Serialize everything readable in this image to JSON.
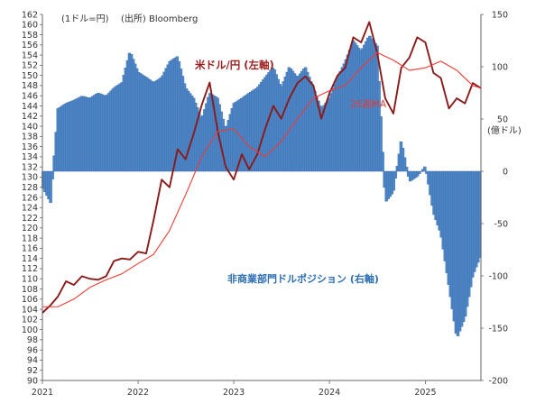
{
  "notes": {
    "left_unit": "(1ドル=円)",
    "source": "(出所) Bloomberg",
    "right_unit": "(億ドル)"
  },
  "labels": {
    "usdjpy": "米ドル/円 (左軸)",
    "ma": "26週MA",
    "positions": "非商業部門ドルポジション (右軸)"
  },
  "colors": {
    "usdjpy": "#8b1a1a",
    "ma": "#ef3b35",
    "bars": "#4f86c6",
    "bar_edge": "#2c5f9e",
    "axis": "#666666"
  },
  "chart_data": {
    "type": "bar+line",
    "x_range": [
      "2021-01-01",
      "2025-08-01"
    ],
    "x_ticks": [
      "2021",
      "2022",
      "2023",
      "2024",
      "2025"
    ],
    "y_left": {
      "min": 90,
      "max": 162,
      "step": 2
    },
    "y_right": {
      "min": -200,
      "max": 150,
      "step": 50,
      "ticks": [
        "150",
        "100",
        "50",
        "0",
        "-50",
        "-100",
        "-150",
        "-200"
      ]
    },
    "series": [
      {
        "name": "米ドル/円",
        "type": "line",
        "axis": "left",
        "points": [
          [
            "2021-01-01",
            103.3
          ],
          [
            "2021-02-01",
            104.8
          ],
          [
            "2021-03-01",
            106.5
          ],
          [
            "2021-04-01",
            109.5
          ],
          [
            "2021-05-01",
            108.8
          ],
          [
            "2021-06-01",
            110.5
          ],
          [
            "2021-07-01",
            110.0
          ],
          [
            "2021-08-01",
            109.8
          ],
          [
            "2021-09-01",
            110.5
          ],
          [
            "2021-10-01",
            113.5
          ],
          [
            "2021-11-01",
            114.0
          ],
          [
            "2021-12-01",
            113.8
          ],
          [
            "2022-01-01",
            115.3
          ],
          [
            "2022-02-01",
            115.0
          ],
          [
            "2022-03-01",
            121.5
          ],
          [
            "2022-04-01",
            129.5
          ],
          [
            "2022-05-01",
            128.0
          ],
          [
            "2022-06-01",
            135.5
          ],
          [
            "2022-07-01",
            133.5
          ],
          [
            "2022-08-01",
            138.5
          ],
          [
            "2022-09-01",
            144.2
          ],
          [
            "2022-10-01",
            148.6
          ],
          [
            "2022-11-01",
            139.0
          ],
          [
            "2022-12-01",
            132.0
          ],
          [
            "2023-01-01",
            129.5
          ],
          [
            "2023-02-01",
            134.5
          ],
          [
            "2023-03-01",
            131.5
          ],
          [
            "2023-04-01",
            134.5
          ],
          [
            "2023-05-01",
            139.5
          ],
          [
            "2023-06-01",
            144.0
          ],
          [
            "2023-07-01",
            141.5
          ],
          [
            "2023-08-01",
            145.5
          ],
          [
            "2023-09-01",
            148.5
          ],
          [
            "2023-10-01",
            149.8
          ],
          [
            "2023-11-01",
            148.0
          ],
          [
            "2023-12-01",
            141.5
          ],
          [
            "2024-01-01",
            146.5
          ],
          [
            "2024-02-01",
            150.0
          ],
          [
            "2024-03-01",
            151.5
          ],
          [
            "2024-04-01",
            157.5
          ],
          [
            "2024-05-01",
            156.5
          ],
          [
            "2024-06-01",
            160.5
          ],
          [
            "2024-07-01",
            154.5
          ],
          [
            "2024-08-01",
            145.5
          ],
          [
            "2024-09-01",
            142.5
          ],
          [
            "2024-10-01",
            151.5
          ],
          [
            "2024-11-01",
            153.5
          ],
          [
            "2024-12-01",
            157.5
          ],
          [
            "2025-01-01",
            156.5
          ],
          [
            "2025-02-01",
            150.5
          ],
          [
            "2025-03-01",
            149.5
          ],
          [
            "2025-04-01",
            143.5
          ],
          [
            "2025-05-01",
            145.5
          ],
          [
            "2025-06-01",
            144.5
          ],
          [
            "2025-07-01",
            148.5
          ],
          [
            "2025-08-01",
            147.5
          ]
        ]
      },
      {
        "name": "26週MA",
        "type": "line",
        "axis": "left",
        "points": [
          [
            "2021-01-01",
            104.5
          ],
          [
            "2021-03-01",
            104.5
          ],
          [
            "2021-05-01",
            106.0
          ],
          [
            "2021-07-01",
            108.3
          ],
          [
            "2021-09-01",
            109.8
          ],
          [
            "2021-11-01",
            111.0
          ],
          [
            "2022-01-01",
            113.0
          ],
          [
            "2022-03-01",
            114.8
          ],
          [
            "2022-05-01",
            119.5
          ],
          [
            "2022-07-01",
            126.5
          ],
          [
            "2022-09-01",
            134.0
          ],
          [
            "2022-11-01",
            139.0
          ],
          [
            "2023-01-01",
            139.5
          ],
          [
            "2023-03-01",
            136.0
          ],
          [
            "2023-05-01",
            134.0
          ],
          [
            "2023-07-01",
            137.0
          ],
          [
            "2023-09-01",
            141.5
          ],
          [
            "2023-11-01",
            145.5
          ],
          [
            "2024-01-01",
            147.0
          ],
          [
            "2024-03-01",
            148.0
          ],
          [
            "2024-05-01",
            151.5
          ],
          [
            "2024-07-01",
            154.5
          ],
          [
            "2024-09-01",
            153.0
          ],
          [
            "2024-11-01",
            151.0
          ],
          [
            "2025-01-01",
            151.5
          ],
          [
            "2025-03-01",
            152.8
          ],
          [
            "2025-05-01",
            151.0
          ],
          [
            "2025-07-01",
            148.0
          ],
          [
            "2025-08-01",
            147.5
          ]
        ]
      },
      {
        "name": "非商業部門ドルポジション",
        "type": "bar",
        "axis": "right",
        "points": [
          [
            "2021-01-01",
            -15
          ],
          [
            "2021-02-01",
            -30
          ],
          [
            "2021-03-01",
            60
          ],
          [
            "2021-04-01",
            65
          ],
          [
            "2021-05-01",
            68
          ],
          [
            "2021-06-01",
            72
          ],
          [
            "2021-07-01",
            70
          ],
          [
            "2021-08-01",
            75
          ],
          [
            "2021-09-01",
            72
          ],
          [
            "2021-10-01",
            80
          ],
          [
            "2021-11-01",
            85
          ],
          [
            "2021-12-01",
            115
          ],
          [
            "2022-01-01",
            95
          ],
          [
            "2022-02-01",
            90
          ],
          [
            "2022-03-01",
            85
          ],
          [
            "2022-04-01",
            90
          ],
          [
            "2022-05-01",
            105
          ],
          [
            "2022-06-01",
            110
          ],
          [
            "2022-07-01",
            80
          ],
          [
            "2022-08-01",
            70
          ],
          [
            "2022-09-01",
            50
          ],
          [
            "2022-10-01",
            75
          ],
          [
            "2022-11-01",
            70
          ],
          [
            "2022-12-01",
            40
          ],
          [
            "2023-01-01",
            65
          ],
          [
            "2023-02-01",
            70
          ],
          [
            "2023-03-01",
            75
          ],
          [
            "2023-04-01",
            80
          ],
          [
            "2023-05-01",
            90
          ],
          [
            "2023-06-01",
            100
          ],
          [
            "2023-07-01",
            80
          ],
          [
            "2023-08-01",
            100
          ],
          [
            "2023-09-01",
            90
          ],
          [
            "2023-10-01",
            100
          ],
          [
            "2023-11-01",
            80
          ],
          [
            "2023-12-01",
            60
          ],
          [
            "2024-01-01",
            70
          ],
          [
            "2024-02-01",
            90
          ],
          [
            "2024-03-01",
            105
          ],
          [
            "2024-04-01",
            125
          ],
          [
            "2024-05-01",
            115
          ],
          [
            "2024-06-01",
            130
          ],
          [
            "2024-07-01",
            120
          ],
          [
            "2024-08-01",
            -30
          ],
          [
            "2024-09-01",
            -20
          ],
          [
            "2024-10-01",
            30
          ],
          [
            "2024-11-01",
            -10
          ],
          [
            "2024-12-01",
            -5
          ],
          [
            "2025-01-01",
            5
          ],
          [
            "2025-02-01",
            -40
          ],
          [
            "2025-03-01",
            -60
          ],
          [
            "2025-04-01",
            -110
          ],
          [
            "2025-05-01",
            -160
          ],
          [
            "2025-06-01",
            -140
          ],
          [
            "2025-07-01",
            -100
          ],
          [
            "2025-08-01",
            -80
          ]
        ]
      }
    ]
  }
}
